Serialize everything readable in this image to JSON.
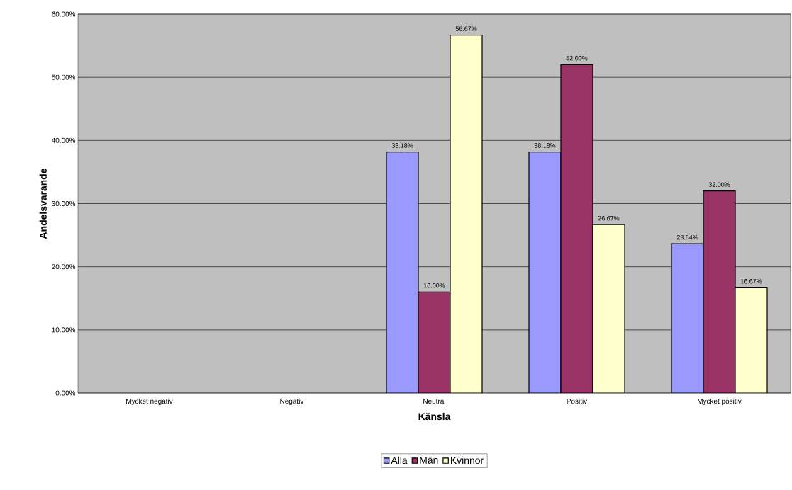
{
  "chart_data": {
    "type": "bar",
    "xlabel": "Känsla",
    "ylabel": "Andelsvarande",
    "categories": [
      "Mycket negativ",
      "Negativ",
      "Neutral",
      "Positiv",
      "Mycket positiv"
    ],
    "series": [
      {
        "name": "Alla",
        "color": "#9999ff",
        "values": [
          null,
          null,
          38.18,
          38.18,
          23.64
        ],
        "value_labels": [
          null,
          null,
          "38.18%",
          "38.18%",
          "23.64%"
        ]
      },
      {
        "name": "Män",
        "color": "#993366",
        "values": [
          null,
          null,
          16.0,
          52.0,
          32.0
        ],
        "value_labels": [
          null,
          null,
          "16.00%",
          "52.00%",
          "32.00%"
        ]
      },
      {
        "name": "Kvinnor",
        "color": "#ffffcc",
        "values": [
          null,
          null,
          56.67,
          26.67,
          16.67
        ],
        "value_labels": [
          null,
          null,
          "56.67%",
          "26.67%",
          "16.67%"
        ]
      }
    ],
    "ylim": [
      0,
      60
    ],
    "yticks": [
      {
        "value": 0,
        "label": "0.00%"
      },
      {
        "value": 10,
        "label": "10.00%"
      },
      {
        "value": 20,
        "label": "20.00%"
      },
      {
        "value": 30,
        "label": "30.00%"
      },
      {
        "value": 40,
        "label": "40.00%"
      },
      {
        "value": 50,
        "label": "50.00%"
      },
      {
        "value": 60,
        "label": "60.00%"
      }
    ],
    "grid": "y",
    "legend": "bottom"
  }
}
